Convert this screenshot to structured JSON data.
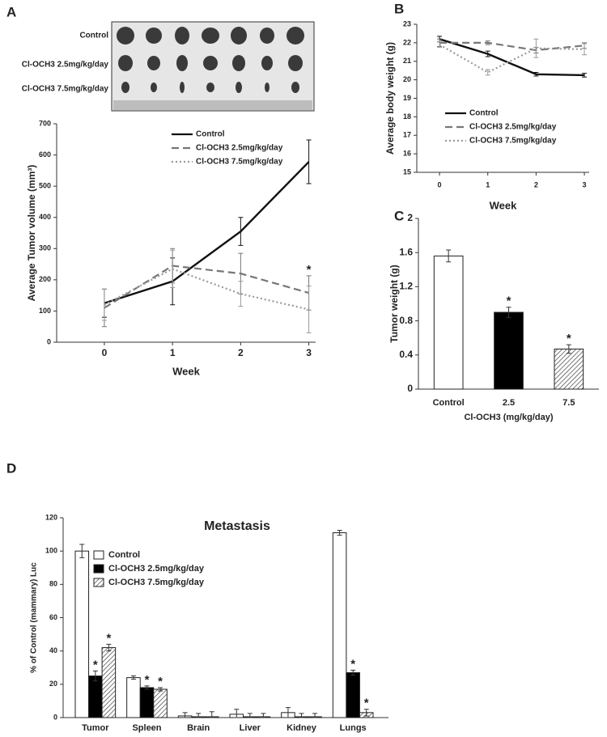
{
  "panels": [
    "A",
    "B",
    "C",
    "D"
  ],
  "photo_labels": [
    "Control",
    "Cl-OCH3 2.5mg/kg/day",
    "Cl-OCH3 7.5mg/kg/day"
  ],
  "chart_data": [
    {
      "type": "line",
      "xlabel": "Week",
      "ylabel": "Average Tumor volume (mm³)",
      "x": [
        0,
        1,
        2,
        3
      ],
      "xlim": [
        -0.7,
        3.1
      ],
      "xticks": [
        0,
        1,
        2,
        3
      ],
      "ylim": [
        0,
        700
      ],
      "yticks": [
        0,
        100,
        200,
        300,
        400,
        500,
        600,
        700
      ],
      "series": [
        {
          "name": "Control",
          "color": "#111111",
          "dash": "none",
          "values": [
            125,
            195,
            355,
            578
          ],
          "errors": [
            45,
            75,
            45,
            70
          ]
        },
        {
          "name": "Cl-OCH3 2.5mg/kg/day",
          "color": "#777777",
          "dash": "9 5",
          "values": [
            110,
            245,
            220,
            158
          ],
          "errors": [
            60,
            55,
            65,
            55
          ]
        },
        {
          "name": "Cl-OCH3 7.5mg/kg/day",
          "color": "#999999",
          "dash": "2 3",
          "values": [
            120,
            235,
            155,
            105
          ],
          "errors": [
            50,
            60,
            40,
            75
          ]
        }
      ],
      "annotations": [
        {
          "text": "*",
          "series": 1,
          "index": 3
        }
      ]
    },
    {
      "type": "line",
      "xlabel": "Week",
      "ylabel": "Average body weight (g)",
      "x": [
        0,
        1,
        2,
        3
      ],
      "xlim": [
        -0.47,
        3.1
      ],
      "xticks": [
        0,
        1,
        2,
        3
      ],
      "ylim": [
        15,
        23
      ],
      "yticks": [
        15,
        16,
        17,
        18,
        19,
        20,
        21,
        22,
        23
      ],
      "series": [
        {
          "name": "Control",
          "color": "#111111",
          "dash": "none",
          "values": [
            22.2,
            21.4,
            20.3,
            20.25
          ],
          "errors": [
            0.15,
            0.15,
            0.1,
            0.1
          ]
        },
        {
          "name": "Cl-OCH3 2.5mg/kg/day",
          "color": "#777777",
          "dash": "9 5",
          "values": [
            22.0,
            22.0,
            21.6,
            21.85
          ],
          "errors": [
            0.2,
            0.1,
            0.15,
            0.15
          ]
        },
        {
          "name": "Cl-OCH3 7.5mg/kg/day",
          "color": "#999999",
          "dash": "2 3",
          "values": [
            21.9,
            20.4,
            21.7,
            21.65
          ],
          "errors": [
            0.15,
            0.15,
            0.5,
            0.3
          ]
        }
      ],
      "annotations": []
    },
    {
      "type": "bar",
      "xlabel": "Cl-OCH3 (mg/kg/day)",
      "ylabel": "Tumor weight (g)",
      "categories": [
        "Control",
        "2.5",
        "7.5"
      ],
      "ylim": [
        0,
        2
      ],
      "yticks": [
        0,
        0.4,
        0.8,
        1.2,
        1.6,
        2
      ],
      "series": [
        {
          "colors": [
            "#ffffff",
            "#000000",
            "hatch"
          ],
          "values": [
            1.56,
            0.9,
            0.47
          ],
          "errors": [
            0.07,
            0.06,
            0.05
          ]
        }
      ],
      "annotations": [
        {
          "text": "*",
          "series": 0,
          "index": 1
        },
        {
          "text": "*",
          "series": 0,
          "index": 2
        }
      ]
    },
    {
      "type": "bar",
      "title": "Metastasis",
      "ylabel": "% of Control (mammary) Luc",
      "categories": [
        "Tumor",
        "Spleen",
        "Brain",
        "Liver",
        "Kidney",
        "Lungs"
      ],
      "ylim": [
        0,
        120
      ],
      "yticks": [
        0,
        20,
        40,
        60,
        80,
        100,
        120
      ],
      "series": [
        {
          "name": "Control",
          "color": "#ffffff",
          "values": [
            100,
            24,
            1,
            2,
            3,
            111
          ],
          "errors": [
            4,
            1,
            2,
            3,
            3,
            1.5
          ]
        },
        {
          "name": "Cl-OCH3 2.5mg/kg/day",
          "color": "#000000",
          "values": [
            25,
            18,
            0.5,
            0.5,
            0.5,
            27
          ],
          "errors": [
            3,
            1,
            2,
            2,
            2,
            1.5
          ]
        },
        {
          "name": "Cl-OCH3 7.5mg/kg/day",
          "color": "hatch",
          "values": [
            42,
            17,
            0.5,
            0.5,
            0.5,
            3
          ],
          "errors": [
            2,
            1,
            3,
            2,
            2,
            2
          ]
        }
      ],
      "annotations": [
        {
          "text": "*",
          "series": 1,
          "index": 0
        },
        {
          "text": "*",
          "series": 2,
          "index": 0
        },
        {
          "text": "*",
          "series": 1,
          "index": 1
        },
        {
          "text": "*",
          "series": 2,
          "index": 1
        },
        {
          "text": "*",
          "series": 1,
          "index": 5
        },
        {
          "text": "*",
          "series": 2,
          "index": 5
        }
      ]
    }
  ]
}
